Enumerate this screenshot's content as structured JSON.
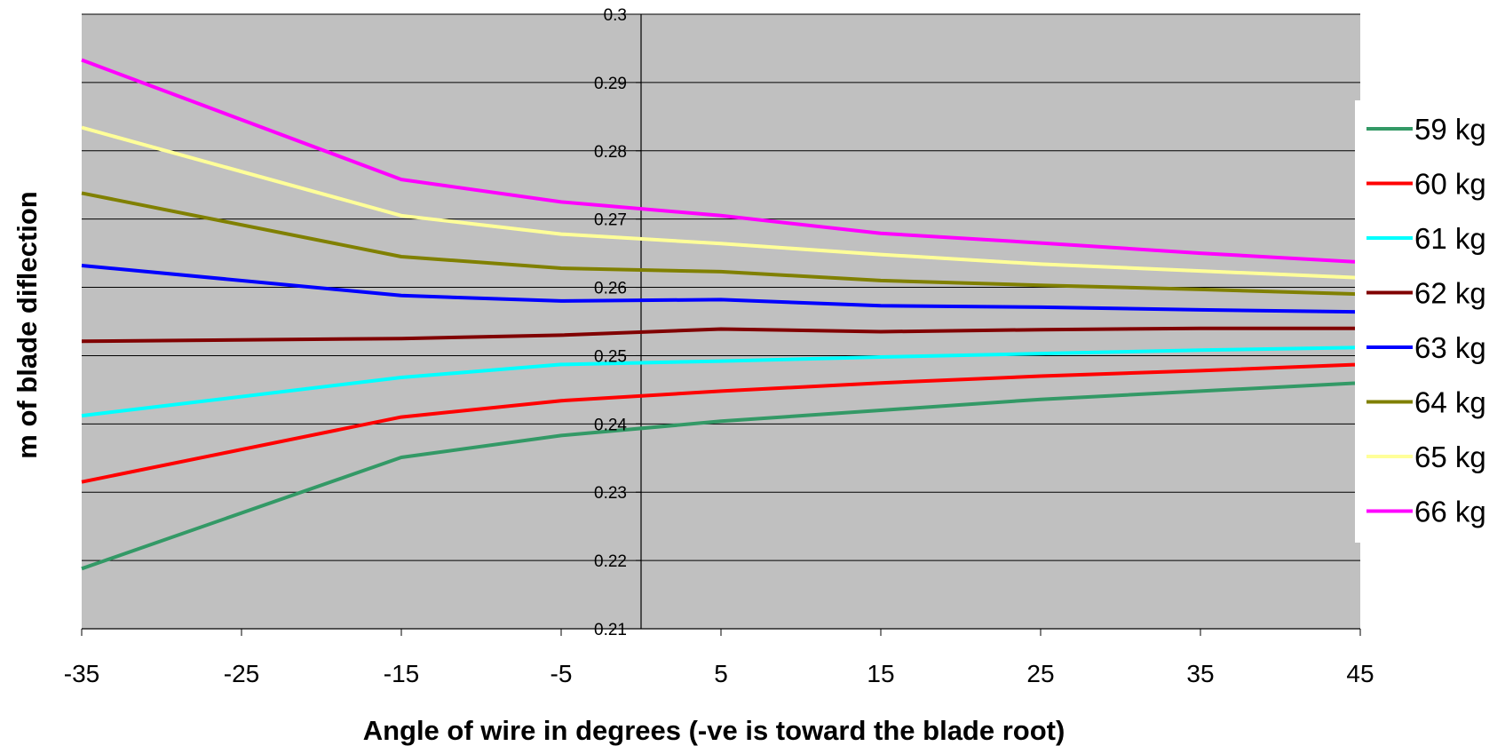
{
  "chart_data": {
    "type": "line",
    "title": "",
    "xlabel": "Angle of wire in degrees (-ve is toward the blade root)",
    "ylabel": "m of blade diflection",
    "x": [
      -35,
      -15,
      -5,
      5,
      15,
      25,
      35,
      45
    ],
    "x_ticks": [
      "-35",
      "-25",
      "-15",
      "-5",
      "5",
      "15",
      "25",
      "35",
      "45"
    ],
    "x_tick_values": [
      -35,
      -25,
      -15,
      -5,
      5,
      15,
      25,
      35,
      45
    ],
    "xlim": [
      -35,
      45
    ],
    "y_ticks": [
      "0.21",
      "0.22",
      "0.23",
      "0.24",
      "0.25",
      "0.26",
      "0.27",
      "0.28",
      "0.29",
      "0.3"
    ],
    "y_tick_values": [
      0.21,
      0.22,
      0.23,
      0.24,
      0.25,
      0.26,
      0.27,
      0.28,
      0.29,
      0.3
    ],
    "ylim": [
      0.21,
      0.3
    ],
    "grid": "horizontal",
    "y_axis_crosses_at_x": 0,
    "plot_background": "#c0c0c0",
    "legend_position": "right",
    "series": [
      {
        "name": "59 kg",
        "color": "#339966",
        "values": [
          0.2188,
          0.2351,
          0.2383,
          0.2404,
          0.242,
          0.2436,
          0.2448,
          0.246
        ]
      },
      {
        "name": "60 kg",
        "color": "#ff0000",
        "values": [
          0.2315,
          0.241,
          0.2434,
          0.2448,
          0.246,
          0.247,
          0.2478,
          0.2487
        ]
      },
      {
        "name": "61 kg",
        "color": "#00ffff",
        "values": [
          0.2412,
          0.2468,
          0.2487,
          0.2492,
          0.2498,
          0.2503,
          0.2508,
          0.2512
        ]
      },
      {
        "name": "62 kg",
        "color": "#800000",
        "values": [
          0.2521,
          0.2525,
          0.253,
          0.2539,
          0.2535,
          0.2538,
          0.254,
          0.254
        ]
      },
      {
        "name": "63 kg",
        "color": "#0000ff",
        "values": [
          0.2632,
          0.2588,
          0.258,
          0.2582,
          0.2573,
          0.2571,
          0.2567,
          0.2564
        ]
      },
      {
        "name": "64 kg",
        "color": "#808000",
        "values": [
          0.2738,
          0.2645,
          0.2628,
          0.2623,
          0.261,
          0.2603,
          0.2597,
          0.259
        ]
      },
      {
        "name": "65 kg",
        "color": "#ffff99",
        "values": [
          0.2834,
          0.2705,
          0.2678,
          0.2664,
          0.2648,
          0.2634,
          0.2624,
          0.2614
        ]
      },
      {
        "name": "66 kg",
        "color": "#ff00ff",
        "values": [
          0.2933,
          0.2758,
          0.2725,
          0.2705,
          0.2679,
          0.2665,
          0.265,
          0.2637
        ]
      }
    ]
  }
}
